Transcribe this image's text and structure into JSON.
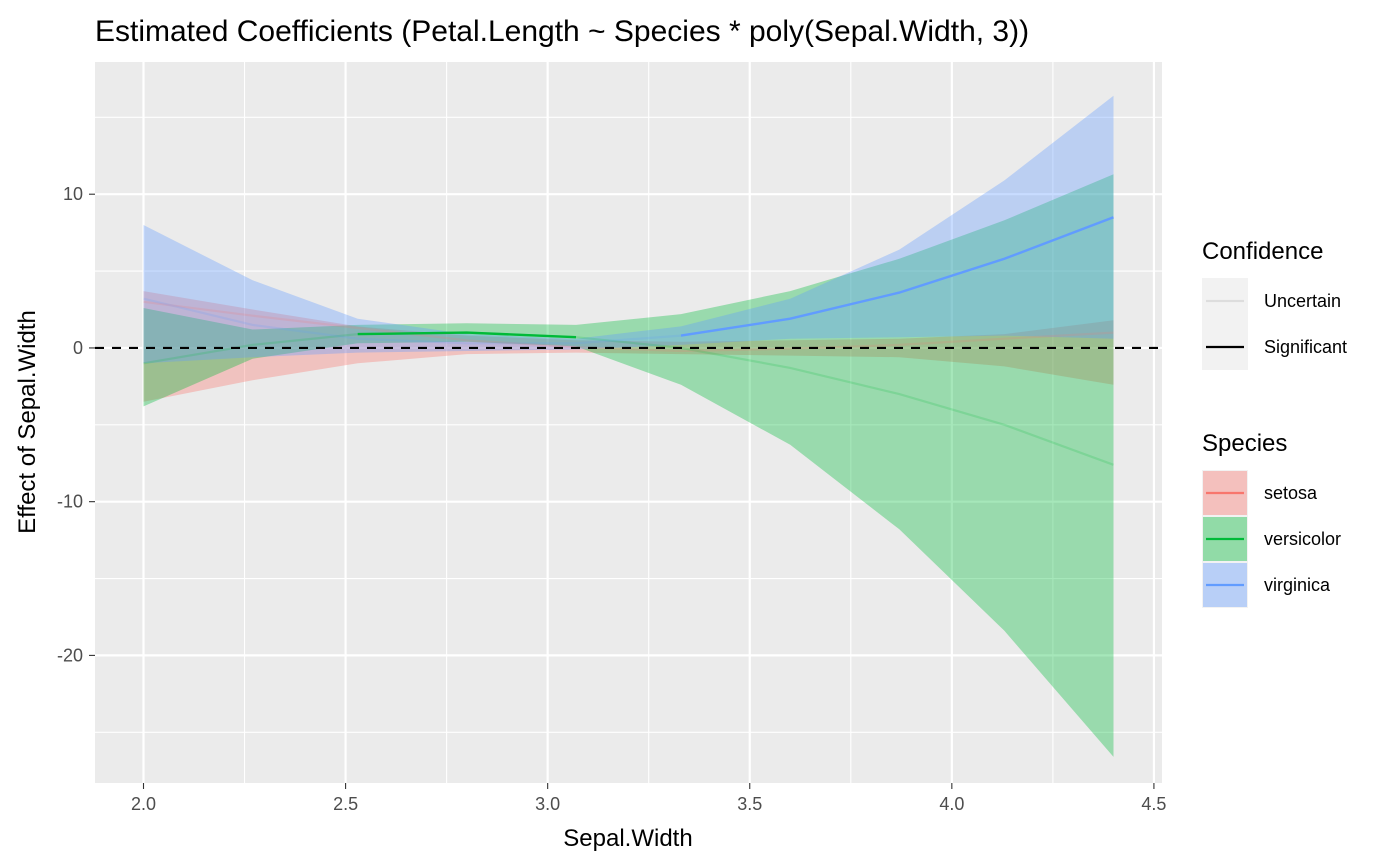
{
  "chart_data": {
    "type": "line",
    "title": "Estimated Coefficients (Petal.Length ~ Species * poly(Sepal.Width, 3))",
    "xlabel": "Sepal.Width",
    "ylabel": "Effect of Sepal.Width",
    "xlim": [
      1.88,
      4.52
    ],
    "ylim": [
      -28.3,
      18.6
    ],
    "x_ticks": [
      "2.0",
      "2.5",
      "3.0",
      "3.5",
      "4.0",
      "4.5"
    ],
    "y_ticks": [
      "10",
      "0",
      "-10",
      "-20"
    ],
    "x_tick_values": [
      2.0,
      2.5,
      3.0,
      3.5,
      4.0,
      4.5
    ],
    "y_tick_values": [
      10,
      0,
      -10,
      -20
    ],
    "grid": true,
    "reference_line": {
      "y": 0,
      "style": "dashed"
    },
    "legends": [
      {
        "title": "Confidence",
        "entries": [
          {
            "label": "Uncertain",
            "color": "#dddddd"
          },
          {
            "label": "Significant",
            "color": "#000000"
          }
        ]
      },
      {
        "title": "Species",
        "entries": [
          {
            "label": "setosa",
            "color": "#F8766D",
            "fill": "#F8B8B2"
          },
          {
            "label": "versicolor",
            "color": "#00BA38",
            "fill": "#7FD89A"
          },
          {
            "label": "virginica",
            "color": "#619CFF",
            "fill": "#B0CDFF"
          }
        ]
      }
    ],
    "legend_position": "right",
    "series": [
      {
        "name": "setosa",
        "color": "#F8766D",
        "x": [
          2.0,
          2.27,
          2.53,
          2.8,
          3.07,
          3.33,
          3.6,
          3.87,
          4.13,
          4.4
        ],
        "y": [
          3.0,
          2.1,
          1.3,
          0.5,
          0.05,
          -0.2,
          -0.05,
          0.2,
          0.6,
          1.0
        ],
        "lower": [
          -3.5,
          -2.1,
          -1.0,
          -0.4,
          -0.3,
          -0.4,
          -0.5,
          -0.6,
          -1.2,
          -2.4
        ],
        "upper": [
          3.7,
          2.5,
          1.4,
          0.8,
          0.5,
          0.4,
          0.5,
          0.6,
          0.9,
          1.8
        ],
        "significant_ranges": []
      },
      {
        "name": "versicolor",
        "color": "#00BA38",
        "x": [
          2.0,
          2.27,
          2.53,
          2.8,
          3.07,
          3.33,
          3.6,
          3.87,
          4.13,
          4.4
        ],
        "y": [
          -1.0,
          0.2,
          0.9,
          1.0,
          0.7,
          0.0,
          -1.3,
          -3.0,
          -5.0,
          -7.6
        ],
        "lower": [
          -3.8,
          -0.7,
          0.3,
          0.4,
          0.1,
          -2.4,
          -6.3,
          -11.8,
          -18.4,
          -26.6
        ],
        "upper": [
          2.6,
          1.2,
          1.5,
          1.6,
          1.5,
          2.2,
          3.7,
          5.8,
          8.3,
          11.3
        ],
        "significant_ranges": [
          [
            2.53,
            3.07
          ]
        ]
      },
      {
        "name": "virginica",
        "color": "#619CFF",
        "x": [
          2.0,
          2.27,
          2.53,
          2.8,
          3.07,
          3.33,
          3.6,
          3.87,
          4.13,
          4.4
        ],
        "y": [
          3.2,
          1.5,
          0.6,
          0.3,
          0.3,
          0.8,
          1.9,
          3.6,
          5.8,
          8.5
        ],
        "lower": [
          -1.0,
          -0.6,
          -0.3,
          -0.2,
          -0.1,
          0.2,
          0.6,
          0.7,
          0.8,
          0.6
        ],
        "upper": [
          8.0,
          4.4,
          1.9,
          0.9,
          0.6,
          1.4,
          3.2,
          6.4,
          10.9,
          16.4
        ],
        "significant_ranges": [
          [
            3.33,
            4.4
          ]
        ]
      }
    ]
  }
}
